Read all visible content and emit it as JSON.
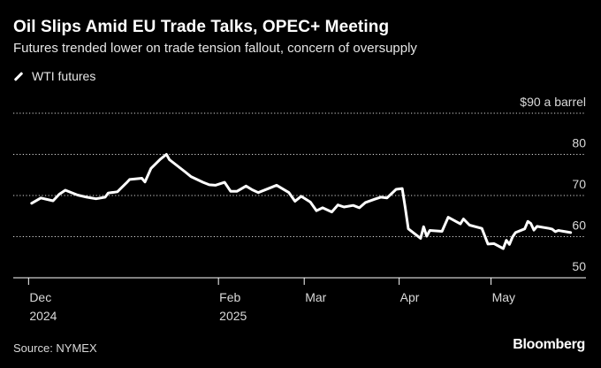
{
  "title": "Oil Slips Amid EU Trade Talks, OPEC+ Meeting",
  "subtitle": "Futures trended lower on trade tension fallout, concern of oversupply",
  "source": "Source: NYMEX",
  "brand": "Bloomberg",
  "colors": {
    "background": "#000000",
    "line": "#ffffff",
    "grid": "#ffffff"
  },
  "chart_data": {
    "type": "line",
    "title": "Oil Slips Amid EU Trade Talks, OPEC+ Meeting",
    "subtitle": "Futures trended lower on trade tension fallout, concern of oversupply",
    "ylabel": "",
    "xlabel": "",
    "ylim": [
      50,
      90
    ],
    "yticks": [
      50,
      60,
      70,
      80,
      90
    ],
    "ytick_labels": [
      "50",
      "60",
      "70",
      "80",
      "$90 a barrel"
    ],
    "xlim": [
      "2024-11-26",
      "2025-06-01"
    ],
    "xticks": [
      {
        "date": "2024-12-01",
        "label": "Dec",
        "sublabel": "2024"
      },
      {
        "date": "2025-02-01",
        "label": "Feb",
        "sublabel": "2025"
      },
      {
        "date": "2025-03-01",
        "label": "Mar",
        "sublabel": ""
      },
      {
        "date": "2025-04-01",
        "label": "Apr",
        "sublabel": ""
      },
      {
        "date": "2025-05-01",
        "label": "May",
        "sublabel": ""
      }
    ],
    "grid": true,
    "legend_position": "top-left",
    "series": [
      {
        "name": "WTI futures",
        "points": [
          [
            "2024-12-02",
            68.1
          ],
          [
            "2024-12-05",
            69.4
          ],
          [
            "2024-12-09",
            68.7
          ],
          [
            "2024-12-11",
            70.3
          ],
          [
            "2024-12-13",
            71.3
          ],
          [
            "2024-12-17",
            70.1
          ],
          [
            "2024-12-20",
            69.6
          ],
          [
            "2024-12-23",
            69.2
          ],
          [
            "2024-12-26",
            69.6
          ],
          [
            "2024-12-27",
            70.6
          ],
          [
            "2024-12-30",
            70.9
          ],
          [
            "2025-01-02",
            73.1
          ],
          [
            "2025-01-03",
            73.9
          ],
          [
            "2025-01-07",
            74.2
          ],
          [
            "2025-01-08",
            73.3
          ],
          [
            "2025-01-10",
            76.6
          ],
          [
            "2025-01-13",
            78.8
          ],
          [
            "2025-01-15",
            80.0
          ],
          [
            "2025-01-16",
            78.7
          ],
          [
            "2025-01-21",
            75.8
          ],
          [
            "2025-01-23",
            74.6
          ],
          [
            "2025-01-27",
            73.2
          ],
          [
            "2025-01-29",
            72.6
          ],
          [
            "2025-01-31",
            72.5
          ],
          [
            "2025-02-03",
            73.2
          ],
          [
            "2025-02-05",
            71.0
          ],
          [
            "2025-02-07",
            71.0
          ],
          [
            "2025-02-10",
            72.3
          ],
          [
            "2025-02-12",
            71.4
          ],
          [
            "2025-02-14",
            70.7
          ],
          [
            "2025-02-18",
            71.9
          ],
          [
            "2025-02-20",
            72.5
          ],
          [
            "2025-02-24",
            70.7
          ],
          [
            "2025-02-26",
            68.6
          ],
          [
            "2025-02-28",
            69.8
          ],
          [
            "2025-03-03",
            68.4
          ],
          [
            "2025-03-05",
            66.3
          ],
          [
            "2025-03-07",
            67.0
          ],
          [
            "2025-03-10",
            66.0
          ],
          [
            "2025-03-12",
            67.7
          ],
          [
            "2025-03-14",
            67.2
          ],
          [
            "2025-03-17",
            67.6
          ],
          [
            "2025-03-19",
            67.0
          ],
          [
            "2025-03-21",
            68.3
          ],
          [
            "2025-03-24",
            69.1
          ],
          [
            "2025-03-26",
            69.6
          ],
          [
            "2025-03-28",
            69.4
          ],
          [
            "2025-03-31",
            71.5
          ],
          [
            "2025-04-02",
            71.7
          ],
          [
            "2025-04-03",
            66.9
          ],
          [
            "2025-04-04",
            61.9
          ],
          [
            "2025-04-08",
            59.6
          ],
          [
            "2025-04-09",
            62.4
          ],
          [
            "2025-04-10",
            60.1
          ],
          [
            "2025-04-11",
            61.5
          ],
          [
            "2025-04-15",
            61.3
          ],
          [
            "2025-04-17",
            64.7
          ],
          [
            "2025-04-21",
            63.1
          ],
          [
            "2025-04-22",
            64.3
          ],
          [
            "2025-04-24",
            62.8
          ],
          [
            "2025-04-28",
            62.0
          ],
          [
            "2025-04-30",
            58.2
          ],
          [
            "2025-05-02",
            58.3
          ],
          [
            "2025-05-05",
            57.1
          ],
          [
            "2025-05-06",
            59.1
          ],
          [
            "2025-05-07",
            58.1
          ],
          [
            "2025-05-08",
            59.9
          ],
          [
            "2025-05-09",
            61.0
          ],
          [
            "2025-05-12",
            61.9
          ],
          [
            "2025-05-13",
            63.7
          ],
          [
            "2025-05-14",
            63.2
          ],
          [
            "2025-05-15",
            61.6
          ],
          [
            "2025-05-16",
            62.5
          ],
          [
            "2025-05-20",
            62.0
          ],
          [
            "2025-05-21",
            61.8
          ],
          [
            "2025-05-22",
            61.2
          ],
          [
            "2025-05-23",
            61.5
          ],
          [
            "2025-05-27",
            61.0
          ]
        ]
      }
    ]
  }
}
